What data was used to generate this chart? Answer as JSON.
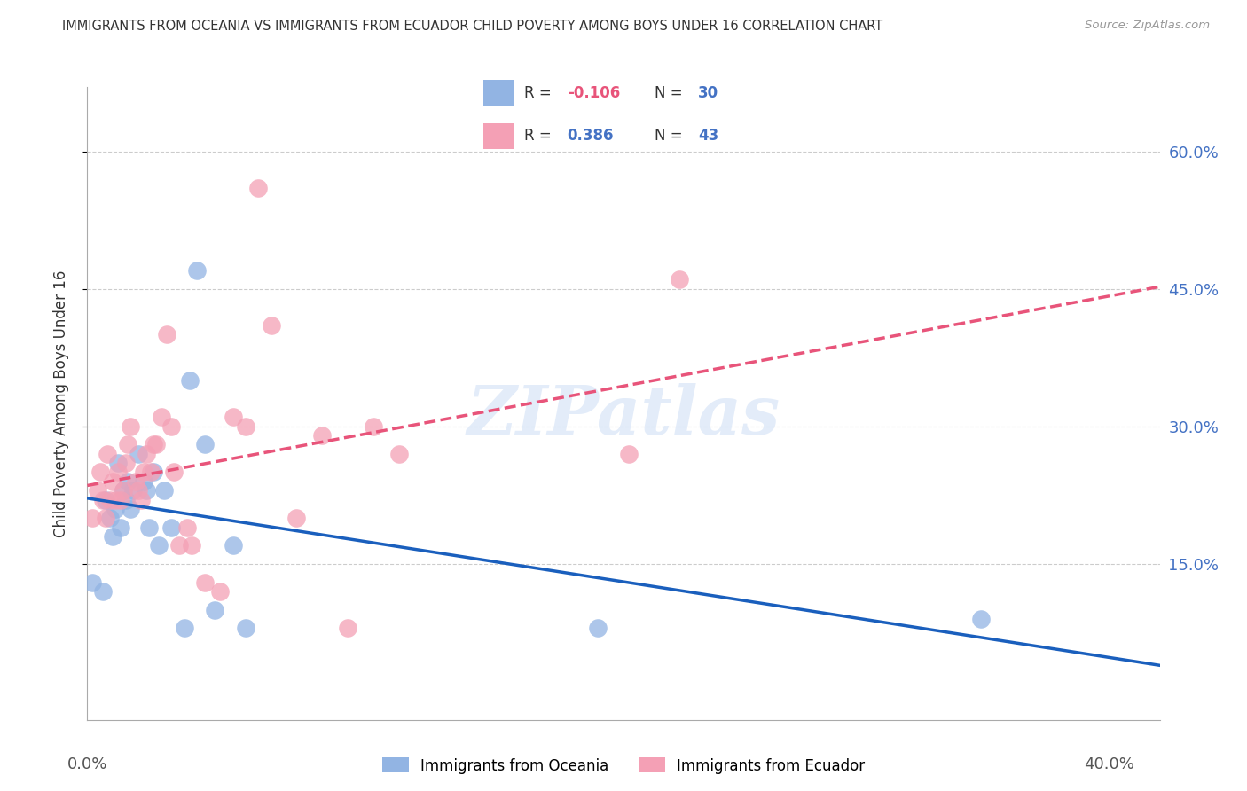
{
  "title": "IMMIGRANTS FROM OCEANIA VS IMMIGRANTS FROM ECUADOR CHILD POVERTY AMONG BOYS UNDER 16 CORRELATION CHART",
  "source": "Source: ZipAtlas.com",
  "ylabel": "Child Poverty Among Boys Under 16",
  "ytick_labels": [
    "15.0%",
    "30.0%",
    "45.0%",
    "60.0%"
  ],
  "ytick_values": [
    0.15,
    0.3,
    0.45,
    0.6
  ],
  "xlim": [
    0.0,
    0.42
  ],
  "ylim": [
    -0.02,
    0.67
  ],
  "watermark": "ZIPatlas",
  "blue_color": "#92b4e3",
  "pink_color": "#f4a0b5",
  "blue_line_color": "#1a5fbd",
  "pink_line_color": "#e8547a",
  "oceania_x": [
    0.002,
    0.006,
    0.007,
    0.009,
    0.01,
    0.011,
    0.012,
    0.013,
    0.014,
    0.015,
    0.016,
    0.017,
    0.018,
    0.02,
    0.022,
    0.023,
    0.024,
    0.026,
    0.028,
    0.03,
    0.033,
    0.038,
    0.04,
    0.043,
    0.046,
    0.05,
    0.057,
    0.062,
    0.2,
    0.35
  ],
  "oceania_y": [
    0.13,
    0.12,
    0.22,
    0.2,
    0.18,
    0.21,
    0.26,
    0.19,
    0.23,
    0.22,
    0.24,
    0.21,
    0.23,
    0.27,
    0.24,
    0.23,
    0.19,
    0.25,
    0.17,
    0.23,
    0.19,
    0.08,
    0.35,
    0.47,
    0.28,
    0.1,
    0.17,
    0.08,
    0.08,
    0.09
  ],
  "ecuador_x": [
    0.002,
    0.004,
    0.005,
    0.006,
    0.007,
    0.008,
    0.009,
    0.01,
    0.011,
    0.012,
    0.013,
    0.014,
    0.015,
    0.016,
    0.017,
    0.019,
    0.02,
    0.021,
    0.022,
    0.023,
    0.025,
    0.026,
    0.027,
    0.029,
    0.031,
    0.033,
    0.034,
    0.036,
    0.039,
    0.041,
    0.046,
    0.052,
    0.057,
    0.062,
    0.067,
    0.072,
    0.082,
    0.092,
    0.102,
    0.112,
    0.122,
    0.212,
    0.232
  ],
  "ecuador_y": [
    0.2,
    0.23,
    0.25,
    0.22,
    0.2,
    0.27,
    0.22,
    0.24,
    0.22,
    0.25,
    0.22,
    0.23,
    0.26,
    0.28,
    0.3,
    0.24,
    0.23,
    0.22,
    0.25,
    0.27,
    0.25,
    0.28,
    0.28,
    0.31,
    0.4,
    0.3,
    0.25,
    0.17,
    0.19,
    0.17,
    0.13,
    0.12,
    0.31,
    0.3,
    0.56,
    0.41,
    0.2,
    0.29,
    0.08,
    0.3,
    0.27,
    0.27,
    0.46
  ]
}
